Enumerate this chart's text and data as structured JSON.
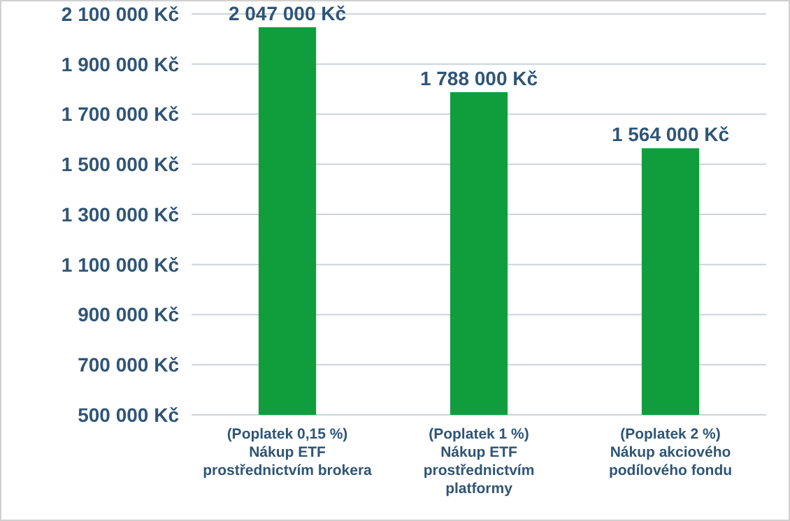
{
  "chart_data": {
    "type": "bar",
    "categories": [
      "(Poplatek 0,15 %)\nNákup ETF\nprostřednictvím brokera",
      "(Poplatek 1 %)\nNákup ETF\nprostřednictvím\nplatformy",
      "(Poplatek 2 %)\nNákup akciového\npodílového fondu"
    ],
    "values": [
      2047000,
      1788000,
      1564000
    ],
    "value_labels": [
      "2 047 000 Kč",
      "1 788 000 Kč",
      "1 564 000 Kč"
    ],
    "color": "#109e3c",
    "ylim": [
      500000,
      2100000
    ],
    "yticks": [
      {
        "value": 500000,
        "label": "500 000 Kč"
      },
      {
        "value": 700000,
        "label": "700 000 Kč"
      },
      {
        "value": 900000,
        "label": "900 000 Kč"
      },
      {
        "value": 1100000,
        "label": "1 100 000 Kč"
      },
      {
        "value": 1300000,
        "label": "1 300 000 Kč"
      },
      {
        "value": 1500000,
        "label": "1 500 000 Kč"
      },
      {
        "value": 1700000,
        "label": "1 700 000 Kč"
      },
      {
        "value": 1900000,
        "label": "1 900 000 Kč"
      },
      {
        "value": 2100000,
        "label": "2 100 000 Kč"
      }
    ],
    "grid": "y"
  }
}
